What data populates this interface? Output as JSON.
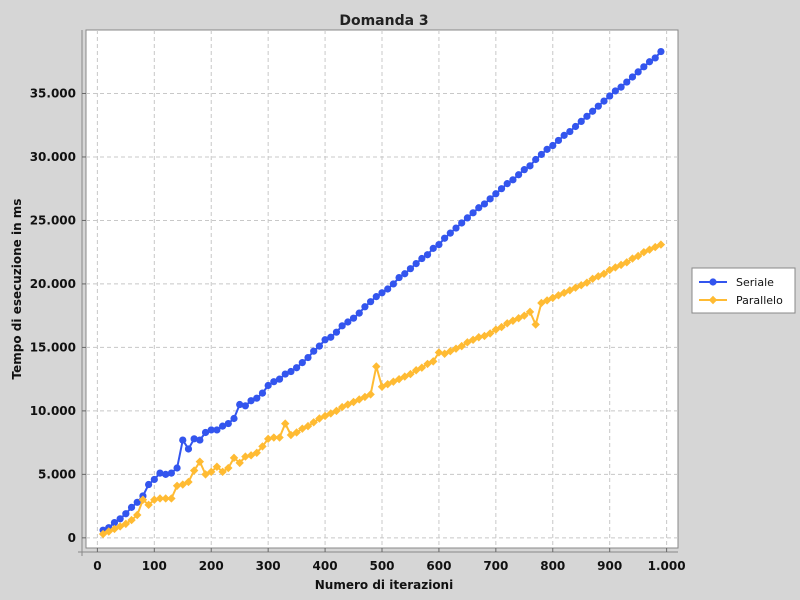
{
  "chart_data": {
    "type": "line",
    "title": "Domanda 3",
    "xlabel": "Numero di iterazioni",
    "ylabel": "Tempo di esecuzione in ms",
    "xlim": [
      -20,
      1020
    ],
    "ylim": [
      -800,
      40000
    ],
    "xticks": [
      {
        "value": 0,
        "label": "0"
      },
      {
        "value": 100,
        "label": "100"
      },
      {
        "value": 200,
        "label": "200"
      },
      {
        "value": 300,
        "label": "300"
      },
      {
        "value": 400,
        "label": "400"
      },
      {
        "value": 500,
        "label": "500"
      },
      {
        "value": 600,
        "label": "600"
      },
      {
        "value": 700,
        "label": "700"
      },
      {
        "value": 800,
        "label": "800"
      },
      {
        "value": 900,
        "label": "900"
      },
      {
        "value": 1000,
        "label": "1.000"
      }
    ],
    "yticks": [
      {
        "value": 0,
        "label": "0"
      },
      {
        "value": 5000,
        "label": "5.000"
      },
      {
        "value": 10000,
        "label": "10.000"
      },
      {
        "value": 15000,
        "label": "15.000"
      },
      {
        "value": 20000,
        "label": "20.000"
      },
      {
        "value": 25000,
        "label": "25.000"
      },
      {
        "value": 30000,
        "label": "30.000"
      },
      {
        "value": 35000,
        "label": "35.000"
      }
    ],
    "grid": true,
    "legend_position": "right",
    "x": [
      10,
      20,
      30,
      40,
      50,
      60,
      70,
      80,
      90,
      100,
      110,
      120,
      130,
      140,
      150,
      160,
      170,
      180,
      190,
      200,
      210,
      220,
      230,
      240,
      250,
      260,
      270,
      280,
      290,
      300,
      310,
      320,
      330,
      340,
      350,
      360,
      370,
      380,
      390,
      400,
      410,
      420,
      430,
      440,
      450,
      460,
      470,
      480,
      490,
      500,
      510,
      520,
      530,
      540,
      550,
      560,
      570,
      580,
      590,
      600,
      610,
      620,
      630,
      640,
      650,
      660,
      670,
      680,
      690,
      700,
      710,
      720,
      730,
      740,
      750,
      760,
      770,
      780,
      790,
      800,
      810,
      820,
      830,
      840,
      850,
      860,
      870,
      880,
      890,
      900,
      910,
      920,
      930,
      940,
      950,
      960,
      970,
      980,
      990
    ],
    "series": [
      {
        "name": "Seriale",
        "color": "#3355ee",
        "marker": "circle",
        "values": [
          600,
          800,
          1200,
          1500,
          1900,
          2400,
          2800,
          3300,
          4200,
          4600,
          5100,
          5000,
          5100,
          5500,
          7700,
          7000,
          7800,
          7700,
          8300,
          8500,
          8500,
          8800,
          9000,
          9400,
          10500,
          10400,
          10800,
          11000,
          11400,
          12000,
          12300,
          12500,
          12900,
          13100,
          13400,
          13800,
          14200,
          14700,
          15100,
          15600,
          15800,
          16200,
          16700,
          17000,
          17300,
          17700,
          18200,
          18600,
          19000,
          19300,
          19600,
          20000,
          20500,
          20800,
          21200,
          21600,
          22000,
          22300,
          22800,
          23100,
          23600,
          24000,
          24400,
          24800,
          25200,
          25600,
          26000,
          26300,
          26700,
          27100,
          27500,
          27900,
          28200,
          28600,
          29000,
          29300,
          29800,
          30200,
          30600,
          30900,
          31300,
          31700,
          32000,
          32400,
          32800,
          33200,
          33600,
          34000,
          34400,
          34800,
          35200,
          35500,
          35900,
          36300,
          36700,
          37100,
          37500,
          37800,
          38300
        ]
      },
      {
        "name": "Parallelo",
        "color": "#ffbb33",
        "marker": "diamond",
        "values": [
          300,
          500,
          700,
          900,
          1100,
          1400,
          1800,
          3000,
          2600,
          3000,
          3100,
          3100,
          3100,
          4100,
          4200,
          4400,
          5300,
          6000,
          5000,
          5200,
          5600,
          5200,
          5500,
          6300,
          5900,
          6400,
          6500,
          6700,
          7200,
          7800,
          7900,
          7900,
          9000,
          8100,
          8300,
          8600,
          8800,
          9100,
          9400,
          9600,
          9800,
          10000,
          10300,
          10500,
          10700,
          10900,
          11100,
          11300,
          13500,
          11900,
          12100,
          12300,
          12500,
          12700,
          12900,
          13200,
          13400,
          13700,
          13900,
          14600,
          14500,
          14700,
          14900,
          15100,
          15400,
          15600,
          15800,
          15900,
          16100,
          16400,
          16600,
          16900,
          17100,
          17300,
          17500,
          17800,
          16800,
          18500,
          18700,
          18900,
          19100,
          19300,
          19500,
          19700,
          19900,
          20100,
          20400,
          20600,
          20800,
          21100,
          21300,
          21500,
          21700,
          22000,
          22200,
          22500,
          22700,
          22900,
          23100
        ]
      }
    ]
  }
}
